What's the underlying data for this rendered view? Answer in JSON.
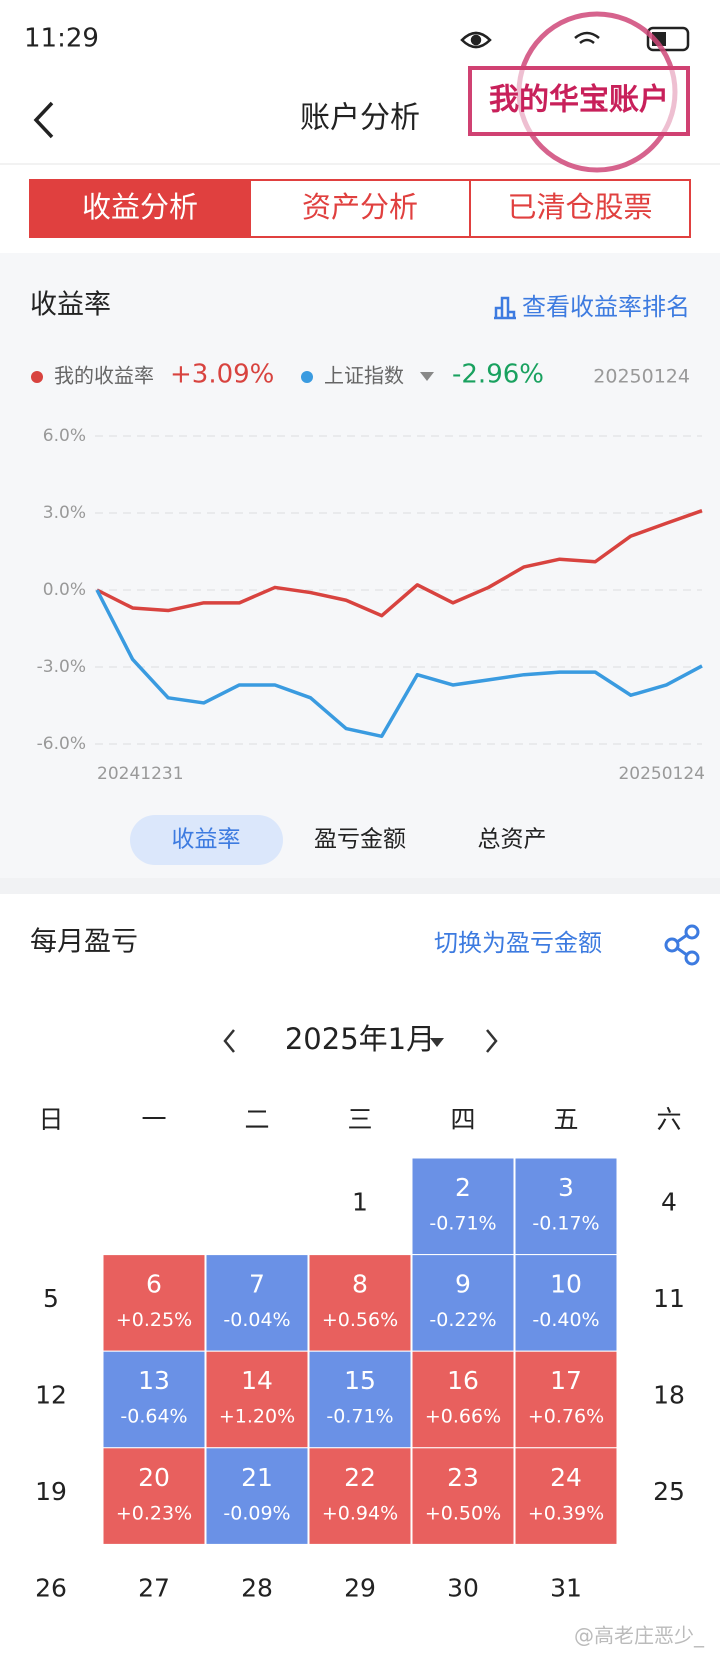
{
  "status_bar": {
    "time": "11:29"
  },
  "header": {
    "title": "账户分析",
    "stamp": "我的华宝账户"
  },
  "tabs": {
    "items": [
      "收益分析",
      "资产分析",
      "已清仓股票"
    ],
    "active": 0,
    "color": "#e0403f"
  },
  "returns": {
    "title": "收益率",
    "link": "查看收益率排名"
  },
  "chart_data": {
    "type": "line",
    "x": [
      "20241231",
      null,
      null,
      null,
      null,
      null,
      null,
      null,
      null,
      null,
      null,
      null,
      null,
      null,
      null,
      null,
      null,
      "20250124"
    ],
    "series": [
      {
        "name": "我的收益率",
        "color": "#d8433f",
        "latest_label": "+3.09%",
        "values": [
          0,
          -0.7,
          -0.8,
          -0.5,
          -0.5,
          0.1,
          -0.1,
          -0.4,
          -1.0,
          0.2,
          -0.5,
          0.1,
          0.9,
          1.2,
          1.1,
          2.1,
          2.6,
          3.09
        ]
      },
      {
        "name": "上证指数",
        "color": "#3a9be0",
        "latest_label": "-2.96%",
        "values": [
          0,
          -2.7,
          -4.2,
          -4.4,
          -3.7,
          -3.7,
          -4.2,
          -5.4,
          -5.7,
          -3.3,
          -3.7,
          -3.5,
          -3.3,
          -3.2,
          -3.2,
          -4.1,
          -3.7,
          -2.96
        ]
      }
    ],
    "ylim": [
      -6,
      6
    ],
    "yticks": [
      {
        "value": 6,
        "label": "6.0%"
      },
      {
        "value": 3,
        "label": "3.0%"
      },
      {
        "value": 0,
        "label": "0.0%"
      },
      {
        "value": -3,
        "label": "-3.0%"
      },
      {
        "value": -6,
        "label": "-6.0%"
      }
    ],
    "grid": true
  },
  "chart_toggle": {
    "items": [
      "收益率",
      "盈亏金额",
      "总资产"
    ],
    "active": 0
  },
  "monthly": {
    "title": "每月盈亏",
    "link": "切换为盈亏金额",
    "month": "2025年1月",
    "weekdays": [
      "日",
      "一",
      "二",
      "三",
      "四",
      "五",
      "六"
    ],
    "up_color": "#e8605e",
    "down_color": "#6a91e6",
    "weeks": [
      [
        null,
        null,
        null,
        {
          "day": 1
        },
        {
          "day": 2,
          "value": -0.71,
          "value_label": "-0.71%"
        },
        {
          "day": 3,
          "value": -0.17,
          "value_label": "-0.17%"
        },
        {
          "day": 4
        }
      ],
      [
        {
          "day": 5
        },
        {
          "day": 6,
          "value": 0.25,
          "value_label": "+0.25%"
        },
        {
          "day": 7,
          "value": -0.04,
          "value_label": "-0.04%"
        },
        {
          "day": 8,
          "value": 0.56,
          "value_label": "+0.56%"
        },
        {
          "day": 9,
          "value": -0.22,
          "value_label": "-0.22%"
        },
        {
          "day": 10,
          "value": -0.4,
          "value_label": "-0.40%"
        },
        {
          "day": 11
        }
      ],
      [
        {
          "day": 12
        },
        {
          "day": 13,
          "value": -0.64,
          "value_label": "-0.64%"
        },
        {
          "day": 14,
          "value": 1.2,
          "value_label": "+1.20%"
        },
        {
          "day": 15,
          "value": -0.71,
          "value_label": "-0.71%"
        },
        {
          "day": 16,
          "value": 0.66,
          "value_label": "+0.66%"
        },
        {
          "day": 17,
          "value": 0.76,
          "value_label": "+0.76%"
        },
        {
          "day": 18
        }
      ],
      [
        {
          "day": 19
        },
        {
          "day": 20,
          "value": 0.23,
          "value_label": "+0.23%"
        },
        {
          "day": 21,
          "value": -0.09,
          "value_label": "-0.09%"
        },
        {
          "day": 22,
          "value": 0.94,
          "value_label": "+0.94%"
        },
        {
          "day": 23,
          "value": 0.5,
          "value_label": "+0.50%"
        },
        {
          "day": 24,
          "value": 0.39,
          "value_label": "+0.39%"
        },
        {
          "day": 25
        }
      ],
      [
        {
          "day": 26
        },
        {
          "day": 27
        },
        {
          "day": 28
        },
        {
          "day": 29
        },
        {
          "day": 30
        },
        {
          "day": 31
        },
        null
      ]
    ]
  },
  "watermark": "@高老庄恶少_"
}
